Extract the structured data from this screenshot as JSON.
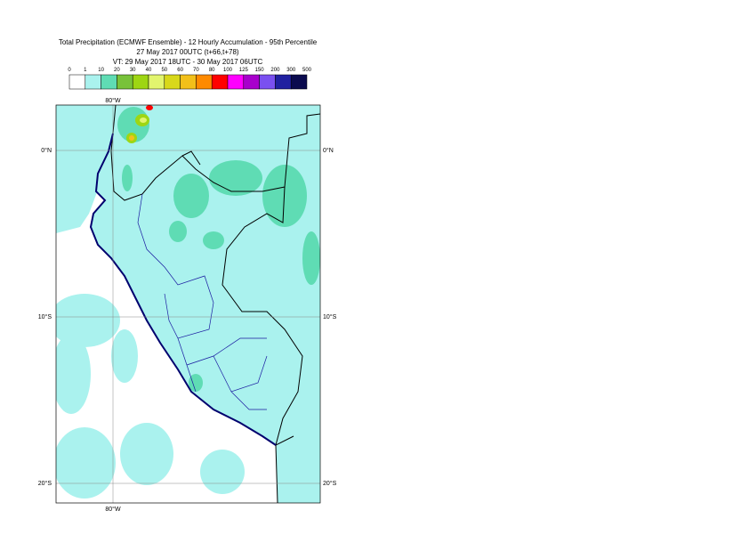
{
  "header": {
    "title_lines": [
      "Total Precipitation (ECMWF Ensemble) - 12 Hourly Accumulation - 95th Percentile",
      "27 May 2017 00UTC (t+66,t+78)",
      "VT: 29 May 2017 18UTC - 30 May 2017 06UTC"
    ]
  },
  "legend": {
    "thresholds": [
      0,
      1,
      10,
      20,
      30,
      40,
      50,
      60,
      70,
      80,
      100,
      125,
      150,
      200,
      300,
      500
    ],
    "colors": [
      "#ffffff",
      "#aaf2ee",
      "#5fdcb4",
      "#78c23a",
      "#9ed613",
      "#e2f56e",
      "#d8d81a",
      "#f2c01a",
      "#ff8a00",
      "#ff0000",
      "#ff00ff",
      "#a800cc",
      "#7a50f0",
      "#2020a0",
      "#0a0a4e"
    ]
  },
  "map": {
    "lat_labels": [
      "0°N",
      "10°S",
      "20°S"
    ],
    "lon_labels": [
      "80°W"
    ]
  }
}
